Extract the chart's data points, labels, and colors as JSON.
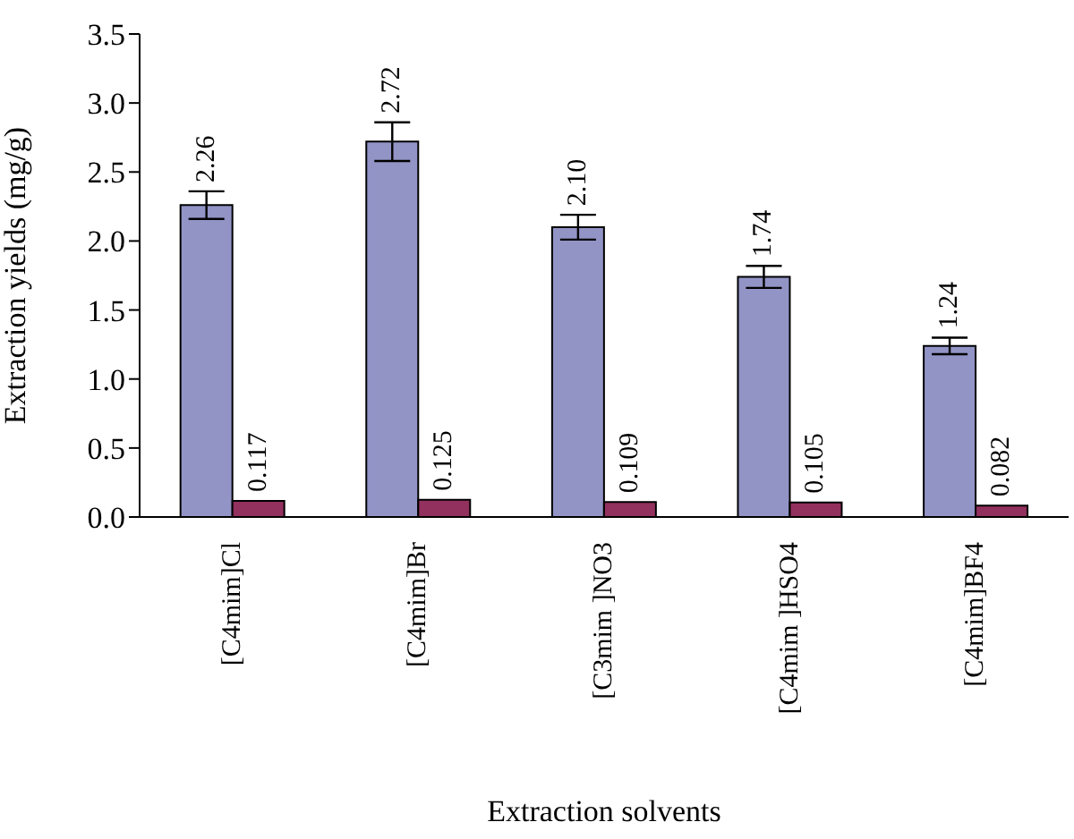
{
  "chart_data": {
    "type": "bar",
    "xlabel": "Extraction solvents",
    "ylabel": "Extraction yields (mg/g)",
    "categories": [
      "[C4mim]Cl",
      "[C4mim]Br",
      "[C3mim ]NO3",
      "[C4mim ]HSO4",
      "[C4mim]BF4"
    ],
    "series": [
      {
        "color": "#9294c6",
        "values": [
          2.26,
          2.72,
          2.1,
          1.74,
          1.24
        ],
        "errors": [
          0.1,
          0.14,
          0.09,
          0.08,
          0.06
        ],
        "value_labels": [
          "2.26",
          "2.72",
          "2.10",
          "1.74",
          "1.24"
        ]
      },
      {
        "color": "#92305e",
        "values": [
          0.117,
          0.125,
          0.109,
          0.105,
          0.082
        ],
        "value_labels": [
          "0.117",
          "0.125",
          "0.109",
          "0.105",
          "0.082"
        ]
      }
    ],
    "ylim": [
      0,
      3.5
    ],
    "yticks": [
      {
        "value": 0,
        "label": "0.0"
      },
      0.5,
      {
        "value": 1,
        "label": "1.0"
      },
      1.5,
      {
        "value": 2,
        "label": "2.0"
      },
      2.5,
      {
        "value": 3,
        "label": "3.0"
      },
      3.5
    ]
  }
}
